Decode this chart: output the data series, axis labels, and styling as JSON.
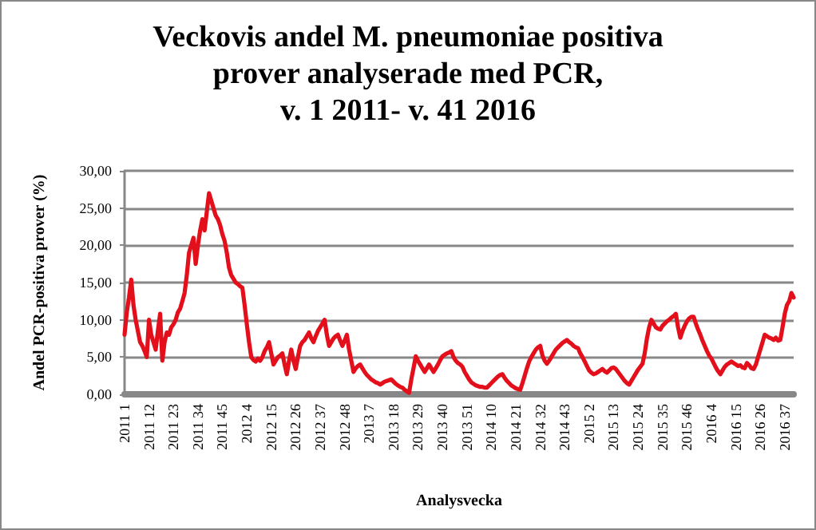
{
  "chart_data": {
    "type": "line",
    "title": "Veckovis andel M. pneumoniae positiva\nprover analyserade med PCR,\nv. 1 2011- v. 41 2016",
    "xlabel": "Analysvecka",
    "ylabel": "Andel PCR-positiva prover (%)",
    "categories": [
      "2011 1",
      null,
      null,
      null,
      null,
      null,
      null,
      null,
      null,
      null,
      null,
      "2011 12",
      null,
      null,
      null,
      null,
      null,
      null,
      null,
      null,
      null,
      null,
      "2011 23",
      null,
      null,
      null,
      null,
      null,
      null,
      null,
      null,
      null,
      null,
      "2011 34",
      null,
      null,
      null,
      null,
      null,
      null,
      null,
      null,
      null,
      null,
      "2011 45",
      null,
      null,
      null,
      null,
      null,
      null,
      null,
      null,
      null,
      null,
      "2012 4",
      null,
      null,
      null,
      null,
      null,
      null,
      null,
      null,
      null,
      null,
      "2012 15",
      null,
      null,
      null,
      null,
      null,
      null,
      null,
      null,
      null,
      null,
      "2012 26",
      null,
      null,
      null,
      null,
      null,
      null,
      null,
      null,
      null,
      null,
      "2012 37",
      null,
      null,
      null,
      null,
      null,
      null,
      null,
      null,
      null,
      null,
      "2012 48",
      null,
      null,
      null,
      null,
      null,
      null,
      null,
      null,
      null,
      null,
      "2013 7",
      null,
      null,
      null,
      null,
      null,
      null,
      null,
      null,
      null,
      null,
      "2013 18",
      null,
      null,
      null,
      null,
      null,
      null,
      null,
      null,
      null,
      null,
      "2013 29",
      null,
      null,
      null,
      null,
      null,
      null,
      null,
      null,
      null,
      null,
      "2013 40",
      null,
      null,
      null,
      null,
      null,
      null,
      null,
      null,
      null,
      null,
      "2013 51",
      null,
      null,
      null,
      null,
      null,
      null,
      null,
      null,
      null,
      null,
      "2014 10",
      null,
      null,
      null,
      null,
      null,
      null,
      null,
      null,
      null,
      null,
      "2014 21",
      null,
      null,
      null,
      null,
      null,
      null,
      null,
      null,
      null,
      null,
      "2014 32",
      null,
      null,
      null,
      null,
      null,
      null,
      null,
      null,
      null,
      null,
      "2014 43",
      null,
      null,
      null,
      null,
      null,
      null,
      null,
      null,
      null,
      null,
      "2015 2",
      null,
      null,
      null,
      null,
      null,
      null,
      null,
      null,
      null,
      null,
      "2015 13",
      null,
      null,
      null,
      null,
      null,
      null,
      null,
      null,
      null,
      null,
      "2015 24",
      null,
      null,
      null,
      null,
      null,
      null,
      null,
      null,
      null,
      null,
      "2015 35",
      null,
      null,
      null,
      null,
      null,
      null,
      null,
      null,
      null,
      null,
      "2015 46",
      null,
      null,
      null,
      null,
      null,
      null,
      null,
      null,
      null,
      null,
      "2016 4",
      null,
      null,
      null,
      null,
      null,
      null,
      null,
      null,
      null,
      null,
      "2016 15",
      null,
      null,
      null,
      null,
      null,
      null,
      null,
      null,
      null,
      null,
      "2016 26",
      null,
      null,
      null,
      null,
      null,
      null,
      null,
      null,
      null,
      null,
      "2016 37",
      null,
      null,
      null,
      null
    ],
    "series": [
      {
        "color": "#e3101c",
        "values": [
          8,
          11,
          13,
          15.4,
          12,
          10,
          8.5,
          7,
          6.5,
          5.8,
          5,
          10,
          8,
          7,
          6,
          8.5,
          10.8,
          4.5,
          7,
          8.3,
          8,
          9,
          9.4,
          10,
          11,
          11.5,
          12.5,
          13.6,
          16,
          19,
          20,
          21,
          17.5,
          20,
          22,
          23.5,
          22,
          24.5,
          27,
          26,
          25,
          24,
          23.5,
          22.7,
          21.5,
          20.6,
          19,
          17,
          16,
          15.5,
          15,
          14.8,
          14.5,
          14.3,
          12,
          9.4,
          7,
          5,
          4.6,
          4.4,
          4.8,
          4.5,
          5,
          5.8,
          6.3,
          7,
          5.5,
          4,
          4.5,
          5,
          5.2,
          5.5,
          4,
          2.7,
          4.5,
          6,
          4.5,
          3.4,
          5,
          6.5,
          7,
          7.3,
          7.8,
          8.3,
          7.5,
          7,
          7.8,
          8.5,
          9,
          9.5,
          10,
          8,
          6.5,
          7,
          7.5,
          7.8,
          8,
          7.2,
          6.5,
          7.2,
          8,
          6,
          4.5,
          3,
          3.5,
          3.8,
          4,
          3.5,
          3,
          2.6,
          2.3,
          2,
          1.8,
          1.6,
          1.5,
          1.3,
          1.5,
          1.7,
          1.8,
          1.9,
          2,
          1.7,
          1.4,
          1.2,
          1,
          0.9,
          0.6,
          0.4,
          0.2,
          2,
          3.5,
          5.1,
          4.5,
          4,
          3.5,
          3,
          3.5,
          4,
          3.5,
          3,
          3.5,
          4,
          4.6,
          5.1,
          5.3,
          5.5,
          5.6,
          5.8,
          5,
          4.5,
          4.2,
          4,
          3.7,
          3,
          2.5,
          2,
          1.6,
          1.4,
          1.2,
          1.1,
          1,
          1,
          0.9,
          0.9,
          1.2,
          1.5,
          1.8,
          2.1,
          2.4,
          2.6,
          2.7,
          2.2,
          1.8,
          1.5,
          1.2,
          1,
          0.8,
          0.7,
          0.6,
          1.5,
          2.5,
          3.5,
          4.4,
          5,
          5.5,
          6,
          6.3,
          6.5,
          5.2,
          4.5,
          4.1,
          4.5,
          5,
          5.5,
          6,
          6.3,
          6.6,
          6.9,
          7.1,
          7.3,
          7,
          6.8,
          6.5,
          6.3,
          6.2,
          5.5,
          5,
          4.4,
          3.8,
          3.2,
          2.9,
          2.7,
          2.8,
          3,
          3.2,
          3.4,
          3.1,
          2.9,
          3.2,
          3.5,
          3.6,
          3.4,
          3,
          2.6,
          2.2,
          1.8,
          1.5,
          1.3,
          1.8,
          2.3,
          2.8,
          3.3,
          3.7,
          4.1,
          5.5,
          7.5,
          9,
          10,
          9.5,
          9,
          8.8,
          8.7,
          9.2,
          9.5,
          9.8,
          10,
          10.3,
          10.5,
          10.8,
          9,
          7.6,
          8.5,
          9.2,
          9.8,
          10.2,
          10.4,
          10.4,
          9.5,
          8.7,
          8,
          7.2,
          6.5,
          5.8,
          5.2,
          4.8,
          4.2,
          3.6,
          3.1,
          2.7,
          3.2,
          3.7,
          4,
          4.2,
          4.4,
          4.2,
          4,
          3.8,
          3.9,
          3.6,
          3.5,
          4.2,
          3.9,
          3.5,
          3.4,
          4,
          5,
          6,
          7,
          8,
          7.8,
          7.6,
          7.5,
          7.3,
          7.6,
          7.2,
          7.3,
          9,
          10.8,
          12,
          12.5,
          13.6,
          13
        ]
      }
    ],
    "ylim": [
      0,
      30
    ],
    "yticks": [
      {
        "value": 0,
        "label": "0,00"
      },
      {
        "value": 5,
        "label": "5,00"
      },
      {
        "value": 10,
        "label": "10,00"
      },
      {
        "value": 15,
        "label": "15,00"
      },
      {
        "value": 20,
        "label": "20,00"
      },
      {
        "value": 25,
        "label": "25,00"
      },
      {
        "value": 30,
        "label": "30,00"
      }
    ],
    "grid": "y",
    "marker": "none",
    "line_style": "solid"
  }
}
